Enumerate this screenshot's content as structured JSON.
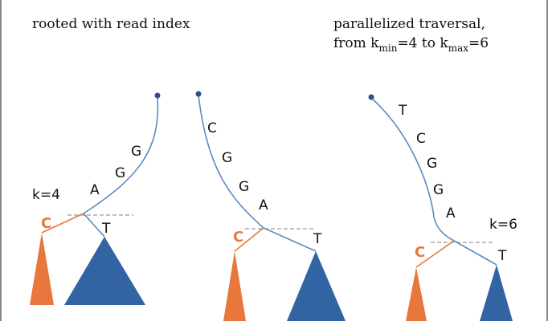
{
  "titles": {
    "left": "rooted with read index",
    "right_line1": "parallelized traversal,",
    "right_line2": {
      "prefix": "from k",
      "sub1": "min",
      "mid": "=4 to k",
      "sub2": "max",
      "suffix": "=6"
    }
  },
  "k_labels": {
    "left": "k=4",
    "right": "k=6"
  },
  "trees": [
    {
      "path_letters": [
        "A",
        "G",
        "G"
      ],
      "branch_orange": "C",
      "branch_blue": "T"
    },
    {
      "path_letters": [
        "C",
        "G",
        "G",
        "A"
      ],
      "branch_orange": "C",
      "branch_blue": "T"
    },
    {
      "path_letters": [
        "T",
        "C",
        "G",
        "G",
        "A"
      ],
      "branch_orange": "C",
      "branch_blue": "T"
    }
  ],
  "colors": {
    "orange": "#e8773b",
    "blue": "#3264a3",
    "line_blue": "#5b8ac4",
    "dash": "#9a9a9a",
    "border": "#8a8a8a"
  }
}
